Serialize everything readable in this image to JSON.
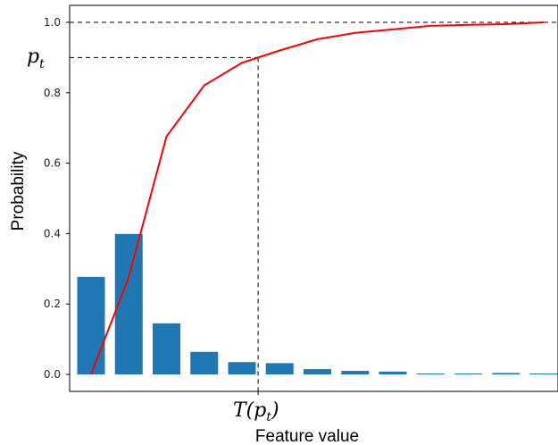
{
  "chart_data": {
    "type": "bar",
    "xlabel": "Feature value",
    "ylabel": "Probability",
    "ylim": [
      -0.05,
      1.05
    ],
    "yticks": [
      "0.0",
      "0.2",
      "0.4",
      "0.6",
      "0.8",
      "1.0"
    ],
    "grid": false,
    "bars": {
      "color": "#1f77b4",
      "values": [
        0.277,
        0.399,
        0.145,
        0.064,
        0.035,
        0.032,
        0.015,
        0.01,
        0.008,
        0.001,
        0.001,
        0.004,
        0.001
      ]
    },
    "cumulative": {
      "color": "#ff0000",
      "values": [
        0.0,
        0.277,
        0.676,
        0.821,
        0.885,
        0.92,
        0.952,
        0.97,
        0.98,
        0.99,
        0.993,
        0.995,
        1.0
      ]
    },
    "threshold": {
      "y": 0.9,
      "y_label_base": "p",
      "y_label_sub": "t",
      "x_label_base": "T(p",
      "x_label_sub": "t",
      "x_label_end": ")"
    },
    "reference_line": {
      "y": 1.0
    }
  }
}
